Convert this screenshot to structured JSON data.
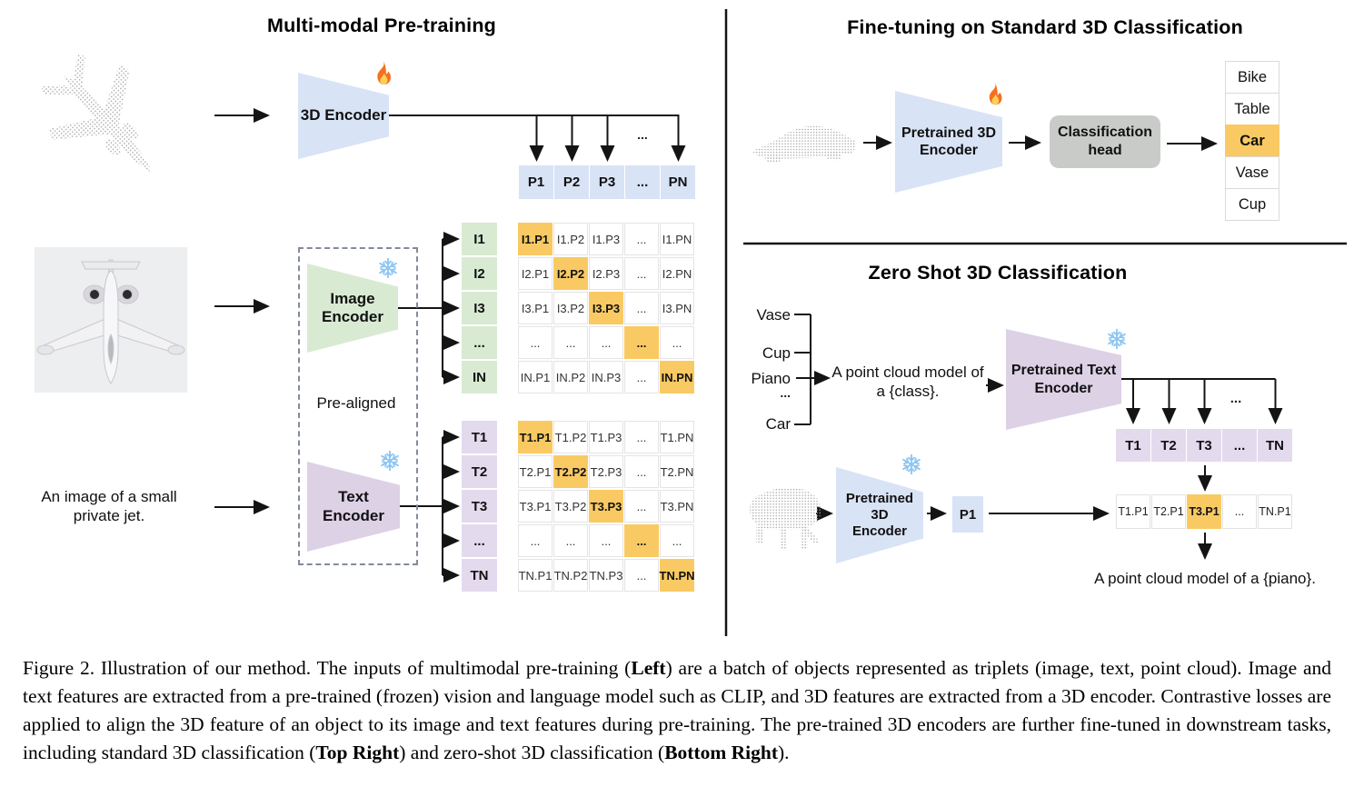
{
  "colors": {
    "blue": "#d9e3f6",
    "green": "#d9ead3",
    "purple": "#e4daee",
    "purple_deep": "#ddd1e6",
    "orange": "#f9ca63",
    "gray_head": "#c9cbc9"
  },
  "misc": {
    "dots": "..."
  },
  "left": {
    "title": "Multi-modal Pre-training",
    "encoder_3d_label": "3D Encoder",
    "image_encoder": [
      "Image",
      "Encoder"
    ],
    "text_encoder": [
      "Text",
      "Encoder"
    ],
    "pre_aligned": "Pre-aligned",
    "image_caption": "An image of a small private jet.",
    "p_row": [
      "P1",
      "P2",
      "P3",
      "...",
      "PN"
    ],
    "image_rows": [
      "I1",
      "I2",
      "I3",
      "...",
      "IN"
    ],
    "image_matrix": [
      [
        "I1.P1",
        "I1.P2",
        "I1.P3",
        "...",
        "I1.PN"
      ],
      [
        "I2.P1",
        "I2.P2",
        "I2.P3",
        "...",
        "I2.PN"
      ],
      [
        "I3.P1",
        "I3.P2",
        "I3.P3",
        "...",
        "I3.PN"
      ],
      [
        "...",
        "...",
        "...",
        "...",
        "..."
      ],
      [
        "IN.P1",
        "IN.P2",
        "IN.P3",
        "...",
        "IN.PN"
      ]
    ],
    "text_rows": [
      "T1",
      "T2",
      "T3",
      "...",
      "TN"
    ],
    "text_matrix": [
      [
        "T1.P1",
        "T1.P2",
        "T1.P3",
        "...",
        "T1.PN"
      ],
      [
        "T2.P1",
        "T2.P2",
        "T2.P3",
        "...",
        "T2.PN"
      ],
      [
        "T3.P1",
        "T3.P2",
        "T3.P3",
        "...",
        "T3.PN"
      ],
      [
        "...",
        "...",
        "...",
        "...",
        "..."
      ],
      [
        "TN.P1",
        "TN.P2",
        "TN.P3",
        "...",
        "TN.PN"
      ]
    ]
  },
  "top_right": {
    "title": "Fine-tuning on Standard 3D Classification",
    "encoder": [
      "Pretrained 3D",
      "Encoder"
    ],
    "head": [
      "Classification",
      "head"
    ],
    "classes": [
      "Bike",
      "Table",
      "Car",
      "Vase",
      "Cup"
    ],
    "highlight_index": 2
  },
  "bottom_right": {
    "title": "Zero Shot 3D Classification",
    "class_list": [
      "Vase",
      "Cup",
      "Piano",
      "...",
      "Car"
    ],
    "prompt": [
      "A point cloud model of",
      "a {class}."
    ],
    "text_encoder": [
      "Pretrained Text",
      "Encoder"
    ],
    "encoder_3d": [
      "Pretrained 3D",
      "Encoder"
    ],
    "p1": "P1",
    "t_row": [
      "T1",
      "T2",
      "T3",
      "...",
      "TN"
    ],
    "tp_row": [
      "T1.P1",
      "T2.P1",
      "T3.P1",
      "...",
      "TN.P1"
    ],
    "tp_highlight_index": 2,
    "result": "A point cloud model of a {piano}."
  },
  "caption": {
    "segments": [
      {
        "text": "Figure 2. Illustration of our method.  The inputs of multimodal pre-training (",
        "bold": false
      },
      {
        "text": "Left",
        "bold": true
      },
      {
        "text": ") are a batch of objects represented as triplets (image, text, point cloud).  Image and text features are extracted from a pre-trained (frozen) vision and language model such as CLIP, and 3D features are extracted from a 3D encoder.  Contrastive losses are applied to align the 3D feature of an object to its image and text features during pre-training.  The pre-trained 3D encoders are further fine-tuned in downstream tasks, including standard 3D classification (",
        "bold": false
      },
      {
        "text": "Top Right",
        "bold": true
      },
      {
        "text": ") and zero-shot 3D classification (",
        "bold": false
      },
      {
        "text": "Bottom Right",
        "bold": true
      },
      {
        "text": ").",
        "bold": false
      }
    ]
  }
}
